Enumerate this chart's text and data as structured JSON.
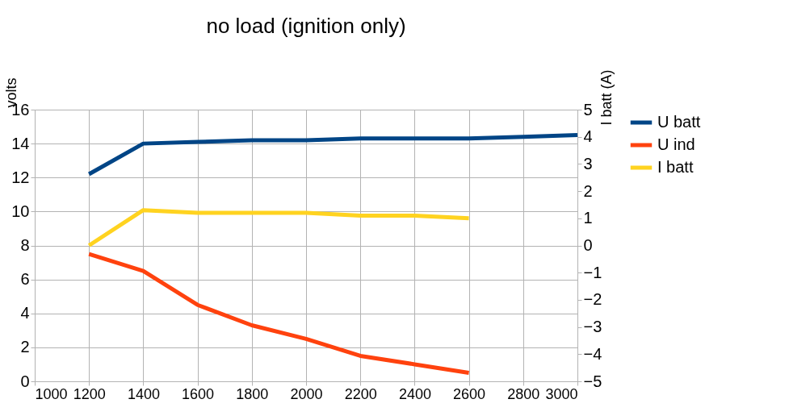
{
  "chart_data": {
    "type": "line",
    "title": "no load (ignition only)",
    "ylabel": "volts",
    "y2label": "I batt (A)",
    "x": [
      1200,
      1400,
      1600,
      1800,
      2000,
      2200,
      2400,
      2600,
      2800,
      3000
    ],
    "series": [
      {
        "name": "U batt",
        "color": "#004586",
        "values": [
          12.2,
          14.0,
          14.1,
          14.2,
          14.2,
          14.3,
          14.3,
          14.3,
          14.4,
          14.5
        ]
      },
      {
        "name": "U ind",
        "color": "#ff420e",
        "values": [
          7.5,
          6.5,
          4.5,
          3.3,
          2.5,
          1.5,
          1.0,
          0.5,
          null,
          null
        ]
      },
      {
        "name": "I batt",
        "color": "#ffd320",
        "axis": "y2",
        "values": [
          0,
          1.3,
          1.2,
          1.2,
          1.2,
          1.1,
          1.1,
          1.0,
          null,
          null
        ]
      }
    ],
    "xlim": [
      1000,
      3000
    ],
    "xticks": [
      1000,
      1200,
      1400,
      1600,
      1800,
      2000,
      2200,
      2400,
      2600,
      2800,
      3000
    ],
    "ylim": [
      0,
      16
    ],
    "yticks": [
      0,
      2,
      4,
      6,
      8,
      10,
      12,
      14,
      16
    ],
    "y2lim": [
      -5,
      5
    ],
    "y2ticks": [
      -5,
      -4,
      -3,
      -2,
      -1,
      0,
      1,
      2,
      3,
      4,
      5
    ],
    "grid": true,
    "legend": "right",
    "marker": "none",
    "line_style": "solid"
  }
}
